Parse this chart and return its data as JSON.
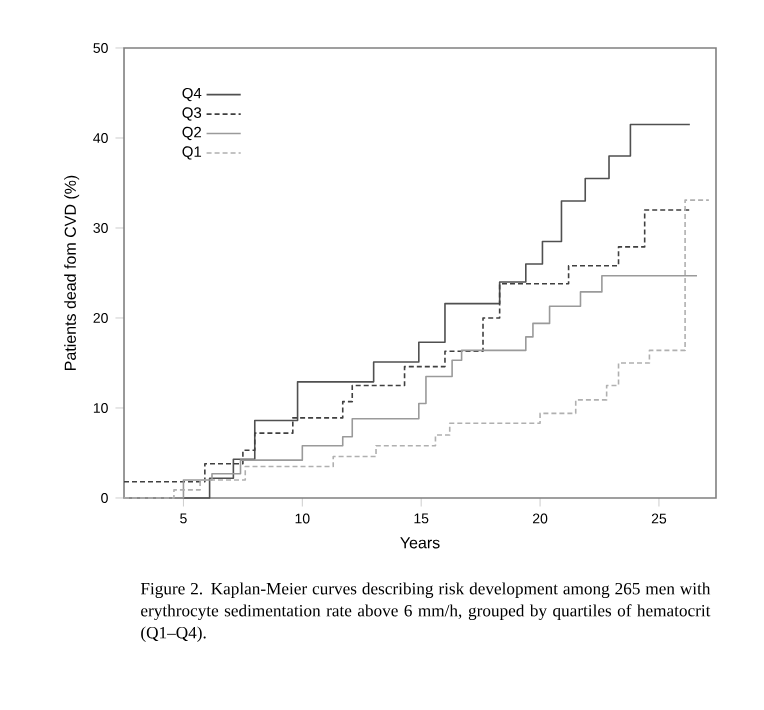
{
  "chart_data": {
    "type": "step",
    "xlabel": "Years",
    "ylabel": "Patients dead fom CVD (%)",
    "xlim": [
      2.5,
      27.4
    ],
    "ylim": [
      0,
      50
    ],
    "xticks": [
      5,
      10,
      15,
      20,
      25
    ],
    "yticks": [
      0,
      10,
      20,
      30,
      40,
      50
    ],
    "legend": "top left",
    "grid": false,
    "marker": "none",
    "series": [
      {
        "name": "Q4",
        "color": "#505050",
        "line_style": "solid",
        "x": [
          2.5,
          6.1,
          7.1,
          8.0,
          9.8,
          13.0,
          14.9,
          16.0,
          18.3,
          19.4,
          20.1,
          20.9,
          21.9,
          22.9,
          23.8,
          26.3
        ],
        "values": [
          0,
          2.2,
          4.3,
          8.6,
          12.9,
          15.1,
          17.3,
          21.6,
          24.0,
          26.0,
          28.5,
          33.0,
          35.5,
          38.0,
          41.5,
          41.5
        ]
      },
      {
        "name": "Q3",
        "color": "#404040",
        "line_style": "dashed",
        "x": [
          2.5,
          5.9,
          7.5,
          8.0,
          9.6,
          11.7,
          12.1,
          14.3,
          16.0,
          17.6,
          18.3,
          21.2,
          23.3,
          24.4,
          26.4
        ],
        "values": [
          1.8,
          3.8,
          5.3,
          7.2,
          8.9,
          10.7,
          12.5,
          14.6,
          16.3,
          20.0,
          23.8,
          25.8,
          27.9,
          32.0,
          32.0
        ]
      },
      {
        "name": "Q2",
        "color": "#9a9a9a",
        "line_style": "solid",
        "x": [
          2.5,
          5.0,
          6.2,
          7.4,
          10.0,
          11.7,
          12.1,
          14.9,
          15.2,
          16.3,
          16.7,
          19.4,
          19.7,
          20.4,
          21.7,
          22.6,
          26.6
        ],
        "values": [
          0,
          2.0,
          2.7,
          4.2,
          5.8,
          6.8,
          8.8,
          10.5,
          13.5,
          15.3,
          16.4,
          17.9,
          19.4,
          21.3,
          22.9,
          24.7,
          24.7
        ]
      },
      {
        "name": "Q1",
        "color": "#b0b0b0",
        "line_style": "dashed",
        "x": [
          2.5,
          4.6,
          5.7,
          7.6,
          11.3,
          13.1,
          15.6,
          16.2,
          20.0,
          21.5,
          22.8,
          23.3,
          24.6,
          26.1,
          27.1
        ],
        "values": [
          0,
          0.9,
          2.0,
          3.5,
          4.6,
          5.8,
          7.0,
          8.3,
          9.4,
          10.9,
          12.5,
          15.0,
          16.4,
          33.1,
          33.1
        ]
      }
    ],
    "annotations": [
      "Figure 2. Kaplan-Meier curves describing risk development among 265 men with erythrocyte sedimentation rate above 6 mm/h, grouped by quartiles of hematocrit (Q1–Q4)."
    ]
  }
}
